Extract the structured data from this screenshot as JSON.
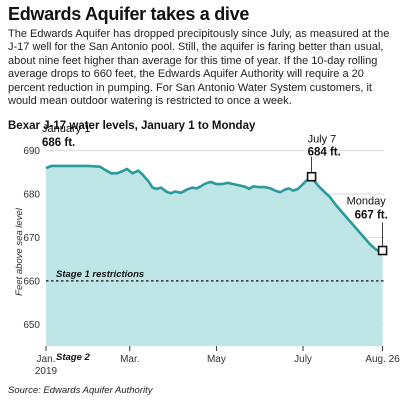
{
  "header": {
    "title": "Edwards Aquifer takes a dive",
    "intro": "The Edwards Aquifer has dropped precipitously since July, as measured at the J-17 well for the San Antonio pool.  Still, the aquifer is faring better than usual, about nine feet higher than average for this time of year. If the 10-day rolling average drops to 660 feet, the Edwards Aquifer Authority will require a 20 percent reduction in pumping. For San Antonio Water System customers, it would mean outdoor watering is restricted to once a week."
  },
  "chart_data": {
    "type": "area",
    "title": "Bexar J-17 water levels, January 1 to Monday",
    "ylabel": "Feet above sea level",
    "xlabel": "",
    "ylim": [
      645,
      692
    ],
    "xlim": [
      0,
      238
    ],
    "yticks": [
      650,
      660,
      670,
      680,
      690
    ],
    "xticks": [
      {
        "x": 0,
        "label": "Jan.",
        "sublabel": "2019"
      },
      {
        "x": 59,
        "label": "Mar.",
        "sublabel": ""
      },
      {
        "x": 120,
        "label": "May",
        "sublabel": ""
      },
      {
        "x": 181,
        "label": "July",
        "sublabel": ""
      },
      {
        "x": 237,
        "label": "Aug. 26",
        "sublabel": ""
      }
    ],
    "grid": true,
    "fill_color": "#bfe6e6",
    "line_color": "#2a9a9c",
    "series": [
      {
        "points": [
          [
            0,
            686
          ],
          [
            4,
            686.5
          ],
          [
            10,
            686.5
          ],
          [
            20,
            686.5
          ],
          [
            30,
            686.5
          ],
          [
            38,
            686.3
          ],
          [
            42,
            685.5
          ],
          [
            46,
            684.8
          ],
          [
            50,
            684.8
          ],
          [
            54,
            685.3
          ],
          [
            57,
            685.8
          ],
          [
            61,
            684.8
          ],
          [
            65,
            685.4
          ],
          [
            68,
            684.5
          ],
          [
            72,
            683
          ],
          [
            75,
            681.5
          ],
          [
            78,
            681.2
          ],
          [
            81,
            681.5
          ],
          [
            85,
            680.5
          ],
          [
            88,
            680.2
          ],
          [
            91,
            680.6
          ],
          [
            95,
            680.3
          ],
          [
            99,
            681
          ],
          [
            103,
            681.5
          ],
          [
            106,
            681.3
          ],
          [
            109,
            681.8
          ],
          [
            112,
            682.4
          ],
          [
            116,
            682.8
          ],
          [
            120,
            682.3
          ],
          [
            124,
            682.3
          ],
          [
            128,
            682.6
          ],
          [
            132,
            682.3
          ],
          [
            136,
            682
          ],
          [
            140,
            681.7
          ],
          [
            143,
            681.2
          ],
          [
            146,
            681.8
          ],
          [
            150,
            681.6
          ],
          [
            154,
            681.6
          ],
          [
            158,
            681.3
          ],
          [
            162,
            680.7
          ],
          [
            165,
            680.4
          ],
          [
            168,
            681
          ],
          [
            171,
            681.3
          ],
          [
            174,
            680.8
          ],
          [
            177,
            681.1
          ],
          [
            180,
            682
          ],
          [
            183,
            683
          ],
          [
            185,
            683.5
          ],
          [
            187,
            684
          ],
          [
            189,
            683
          ],
          [
            192,
            681.8
          ],
          [
            196,
            680.5
          ],
          [
            200,
            679.3
          ],
          [
            204,
            677.5
          ],
          [
            208,
            676
          ],
          [
            212,
            674.5
          ],
          [
            216,
            673
          ],
          [
            220,
            671.5
          ],
          [
            224,
            670
          ],
          [
            228,
            668.5
          ],
          [
            232,
            667.3
          ],
          [
            235,
            666.8
          ],
          [
            237,
            667
          ]
        ]
      }
    ],
    "reference_lines": [
      {
        "y": 660,
        "style": "dotted"
      }
    ],
    "bands": [
      {
        "label": "Stage 1 restrictions",
        "y_from": 660,
        "y_to": 692
      },
      {
        "label": "Stage 2",
        "y_from": 645,
        "y_to": 660
      }
    ],
    "annotations": [
      {
        "x": 0,
        "y": 686,
        "label": "January 1",
        "value": "686 ft."
      },
      {
        "x": 187,
        "y": 684,
        "label": "July 7",
        "value": "684 ft."
      },
      {
        "x": 237,
        "y": 667,
        "label": "Monday",
        "value": "667 ft."
      }
    ]
  },
  "footer": {
    "source": "Source: Edwards Aquifer Authority"
  }
}
